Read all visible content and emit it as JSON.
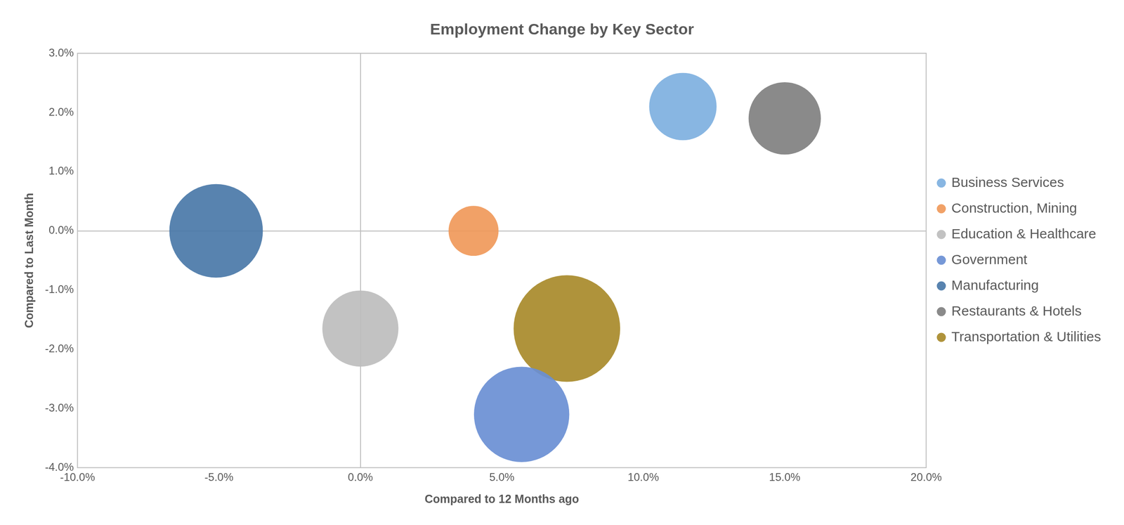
{
  "chart_data": {
    "type": "bubble",
    "title": "Employment Change by Key Sector",
    "x_label": "Compared to 12 Months ago",
    "y_label": "Compared to Last Month",
    "series": [
      {
        "name": "Business Services",
        "color": "#7eb0e0",
        "x": [
          11.4
        ],
        "values": [
          2.1
        ],
        "sizes": [
          40
        ]
      },
      {
        "name": "Construction, Mining",
        "color": "#f0995a",
        "x": [
          4.0
        ],
        "values": [
          0.0
        ],
        "sizes": [
          22
        ]
      },
      {
        "name": "Education & Healthcare",
        "color": "#bdbdbd",
        "x": [
          0.0
        ],
        "values": [
          -1.65
        ],
        "sizes": [
          51
        ]
      },
      {
        "name": "Government",
        "color": "#6a8fd4",
        "x": [
          5.7
        ],
        "values": [
          -3.1
        ],
        "sizes": [
          80
        ]
      },
      {
        "name": "Manufacturing",
        "color": "#4a78a8",
        "x": [
          -5.1
        ],
        "values": [
          0.0
        ],
        "sizes": [
          77
        ]
      },
      {
        "name": "Restaurants & Hotels",
        "color": "#808080",
        "x": [
          15.0
        ],
        "values": [
          1.9
        ],
        "sizes": [
          46
        ]
      },
      {
        "name": "Transportation & Utilities",
        "color": "#a88a2a",
        "x": [
          7.3
        ],
        "values": [
          -1.65
        ],
        "sizes": [
          100
        ]
      }
    ],
    "xlim": [
      -10,
      20
    ],
    "xticks": [
      {
        "value": -10,
        "label": "-10.0%"
      },
      {
        "value": -5,
        "label": "-5.0%"
      },
      {
        "value": 0,
        "label": "0.0%"
      },
      {
        "value": 5,
        "label": "5.0%"
      },
      {
        "value": 10,
        "label": "10.0%"
      },
      {
        "value": 15,
        "label": "15.0%"
      },
      {
        "value": 20,
        "label": "20.0%"
      }
    ],
    "ylim": [
      -4,
      3
    ],
    "yticks": [
      {
        "value": -4,
        "label": "-4.0%"
      },
      {
        "value": -3,
        "label": "-3.0%"
      },
      {
        "value": -2,
        "label": "-2.0%"
      },
      {
        "value": -1,
        "label": "-1.0%"
      },
      {
        "value": 0,
        "label": "0.0%"
      },
      {
        "value": 1,
        "label": "1.0%"
      },
      {
        "value": 2,
        "label": "2.0%"
      },
      {
        "value": 3,
        "label": "3.0%"
      }
    ],
    "grid": false,
    "legend": "right"
  }
}
